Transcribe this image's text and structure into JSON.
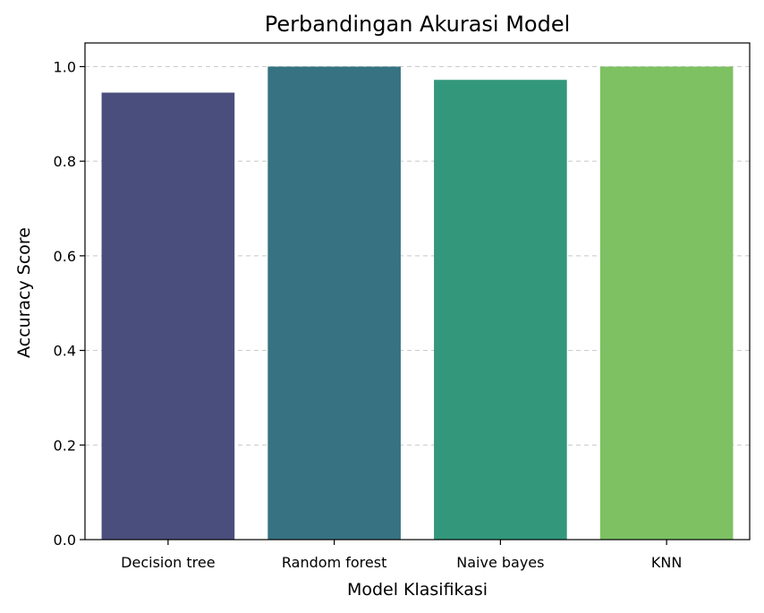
{
  "chart_data": {
    "type": "bar",
    "title": "Perbandingan Akurasi Model",
    "xlabel": "Model Klasifikasi",
    "ylabel": "Accuracy Score",
    "categories": [
      "Decision tree",
      "Random forest",
      "Naive bayes",
      "KNN"
    ],
    "values": [
      0.945,
      1.0,
      0.972,
      1.0
    ],
    "colors": [
      "#4a4e7c",
      "#367282",
      "#33977b",
      "#7dc163"
    ],
    "ylim": [
      0,
      1.05
    ],
    "yticks": [
      0.0,
      0.2,
      0.4,
      0.6,
      0.8,
      1.0
    ],
    "ytick_labels": [
      "0.0",
      "0.2",
      "0.4",
      "0.6",
      "0.8",
      "1.0"
    ],
    "grid": "y-dashed",
    "legend": "none"
  }
}
